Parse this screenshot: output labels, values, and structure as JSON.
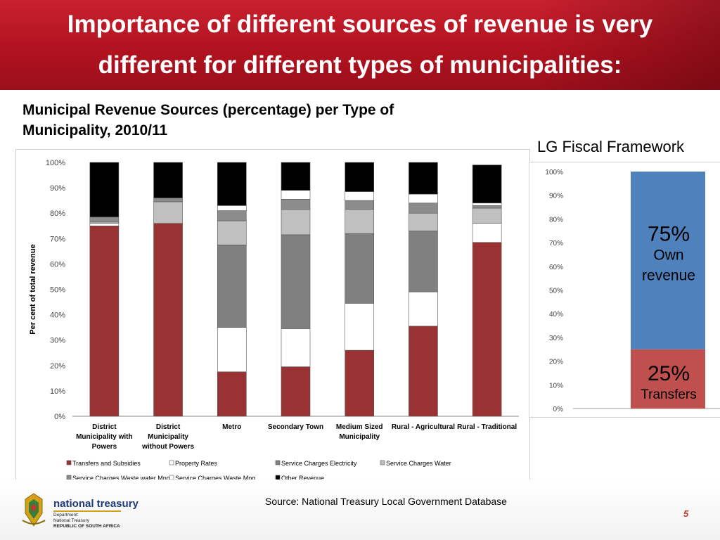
{
  "header": {
    "title_line1": "Importance of different sources of revenue is very",
    "title_line2": "different for different types of municipalities:"
  },
  "subtitle_line1": "Municipal Revenue Sources (percentage) per Type of",
  "subtitle_line2": "Municipality, 2010/11",
  "lg_title": "LG Fiscal Framework",
  "source": "Source: National Treasury Local Government Database",
  "page_number": "5",
  "logo": {
    "name": "national treasury",
    "sub1": "Department:",
    "sub2": "National Treasury",
    "sub3": "REPUBLIC OF SOUTH AFRICA"
  },
  "colors": {
    "header_red": "#b5121f",
    "transfers": "#993333",
    "rates": "#ffffff",
    "electricity": "#808080",
    "water": "#c0c0c0",
    "waste_water": "#8c8c8c",
    "waste": "#ffffff",
    "other": "#000000",
    "own_revenue_blue": "#4f81bd",
    "transfers_red": "#c0504d"
  },
  "chart_data": [
    {
      "type": "bar",
      "stacked": true,
      "ylabel": "Per cent of total revenue",
      "ylim": [
        0,
        100
      ],
      "yticks": [
        "0%",
        "10%",
        "20%",
        "30%",
        "40%",
        "50%",
        "60%",
        "70%",
        "80%",
        "90%",
        "100%"
      ],
      "categories": [
        [
          "District",
          "Municipality with",
          "Powers"
        ],
        [
          "District",
          "Municipality",
          "without Powers"
        ],
        [
          "Metro"
        ],
        [
          "Secondary Town"
        ],
        [
          "Medium Sized",
          "Municipality"
        ],
        [
          "Rural - Agricultural"
        ],
        [
          "Rural - Traditional"
        ]
      ],
      "series": [
        {
          "name": "Transfers and Subsidies",
          "values": [
            75,
            76,
            17.5,
            19.5,
            26,
            35.5,
            68.5
          ]
        },
        {
          "name": "Property Rates",
          "values": [
            1,
            0,
            17.5,
            15,
            18.5,
            13.5,
            7.5
          ]
        },
        {
          "name": "Service Charges Electricity",
          "values": [
            0,
            0,
            32.5,
            37,
            27.5,
            24,
            0
          ]
        },
        {
          "name": "Service Charges Water",
          "values": [
            0.5,
            8.5,
            9.5,
            10,
            9.5,
            7,
            6
          ]
        },
        {
          "name": "Service Charges Waste water Mng",
          "values": [
            2,
            1.5,
            4,
            4,
            3.5,
            4,
            1
          ]
        },
        {
          "name": "Service Charges Waste Mng",
          "values": [
            0,
            0,
            2,
            3.5,
            3.5,
            3.5,
            1
          ]
        },
        {
          "name": "Other Revenue",
          "values": [
            21.5,
            14,
            17,
            11,
            11.5,
            12.5,
            15
          ]
        }
      ],
      "legend_position": "bottom",
      "grid": false
    },
    {
      "type": "bar",
      "stacked": true,
      "ylim": [
        0,
        100
      ],
      "yticks": [
        "0%",
        "10%",
        "20%",
        "30%",
        "40%",
        "50%",
        "60%",
        "70%",
        "80%",
        "90%",
        "100%"
      ],
      "series": [
        {
          "name": "Transfers",
          "values": [
            25
          ],
          "label_pct": "25%",
          "label_text": "Transfers"
        },
        {
          "name": "Own revenue",
          "values": [
            75
          ],
          "label_pct": "75%",
          "label_line1": "Own",
          "label_line2": "revenue"
        }
      ],
      "grid": false
    }
  ]
}
